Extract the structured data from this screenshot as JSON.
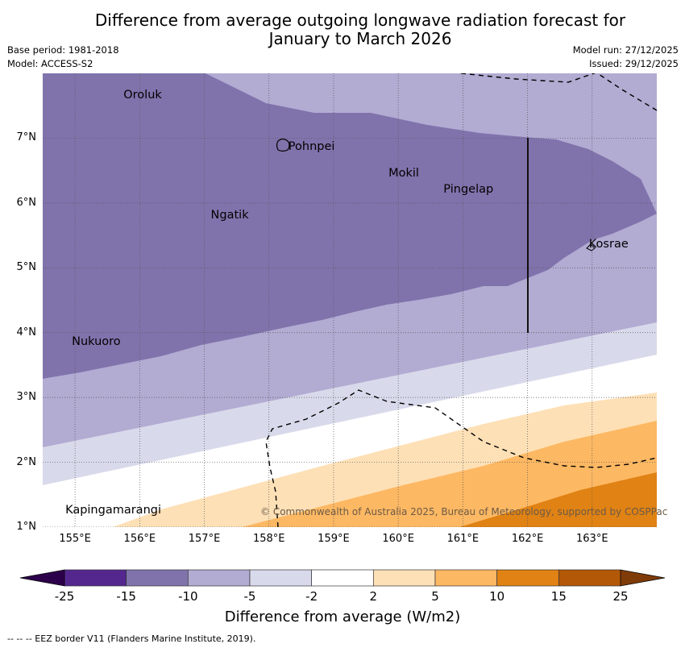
{
  "header": {
    "title_line1": "Difference from average outgoing longwave radiation forecast for",
    "title_line2": "January to March 2026",
    "base_period": "Base period: 1981-2018",
    "model": "Model: ACCESS-S2",
    "model_run": "Model run: 27/12/2025",
    "issued": "Issued: 29/12/2025"
  },
  "map": {
    "lon_range": [
      154.5,
      164.0
    ],
    "lat_range": [
      1.0,
      8.0
    ],
    "lat_ticks": [
      "7°N",
      "6°N",
      "5°N",
      "4°N",
      "3°N",
      "2°N",
      "1°N"
    ],
    "lon_ticks": [
      "155°E",
      "156°E",
      "157°E",
      "158°E",
      "159°E",
      "160°E",
      "161°E",
      "162°E",
      "163°E"
    ],
    "places": [
      {
        "name": "Oroluk",
        "lon": 155.75,
        "lat": 7.65
      },
      {
        "name": "Pohnpei",
        "lon": 158.3,
        "lat": 6.85
      },
      {
        "name": "Mokil",
        "lon": 159.85,
        "lat": 6.45
      },
      {
        "name": "Pingelap",
        "lon": 160.7,
        "lat": 6.2
      },
      {
        "name": "Ngatik",
        "lon": 157.1,
        "lat": 5.8
      },
      {
        "name": "Kosrae",
        "lon": 162.95,
        "lat": 5.35
      },
      {
        "name": "Nukuoro",
        "lon": 154.95,
        "lat": 3.85
      },
      {
        "name": "Kapingamarangi",
        "lon": 154.85,
        "lat": 1.25
      }
    ],
    "copyright": "© Commonwealth of Australia 2025, Bureau of Meteorology, supported by COSPPac"
  },
  "colorbar": {
    "ticks": [
      "-25",
      "-15",
      "-10",
      "-5",
      "-2",
      "2",
      "5",
      "10",
      "15",
      "25"
    ],
    "colors": [
      "#54278f",
      "#8073ac",
      "#b2abd2",
      "#d8daeb",
      "#ffffff",
      "#fee0b6",
      "#fdb863",
      "#e08214",
      "#b35806"
    ],
    "under_color": "#2d004b",
    "over_color": "#7f3b08",
    "label": "Difference from average (W/m2)"
  },
  "footer": {
    "eez_note": "--  --  -- EEZ border V11 (Flanders Marine Institute, 2019)."
  }
}
